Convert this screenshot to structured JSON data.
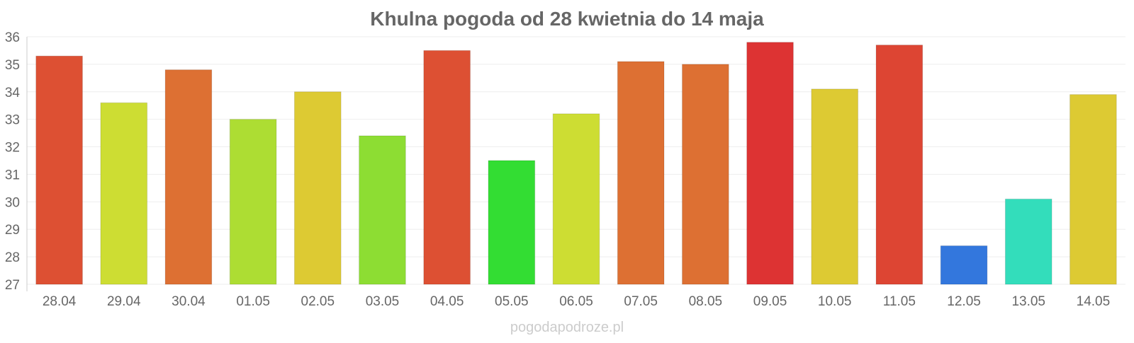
{
  "chart_data": {
    "type": "bar",
    "title": "Khulna pogoda od 28 kwietnia do 14 maja",
    "categories": [
      "28.04",
      "29.04",
      "30.04",
      "01.05",
      "02.05",
      "03.05",
      "04.05",
      "05.05",
      "06.05",
      "07.05",
      "08.05",
      "09.05",
      "10.05",
      "11.05",
      "12.05",
      "13.05",
      "14.05"
    ],
    "values": [
      35.3,
      33.6,
      34.8,
      33.0,
      34.0,
      32.4,
      35.5,
      31.5,
      33.2,
      35.1,
      35.0,
      35.8,
      34.1,
      35.7,
      28.4,
      30.1,
      33.9
    ],
    "colors": [
      "#dd5033",
      "#cddd33",
      "#dd7033",
      "#addd33",
      "#ddca33",
      "#8ddd33",
      "#dd5033",
      "#33dd33",
      "#cddd33",
      "#dd7033",
      "#dd7033",
      "#dd3333",
      "#ddca33",
      "#dd4533",
      "#3377dd",
      "#33ddbb",
      "#ddca33"
    ],
    "ylim": [
      27,
      36
    ],
    "yticks": [
      27,
      28,
      29,
      30,
      31,
      32,
      33,
      34,
      35,
      36
    ],
    "xlabel": "",
    "ylabel": "",
    "grid": true,
    "legend": "none"
  },
  "footer": {
    "watermark": "pogodapodroze.pl"
  }
}
